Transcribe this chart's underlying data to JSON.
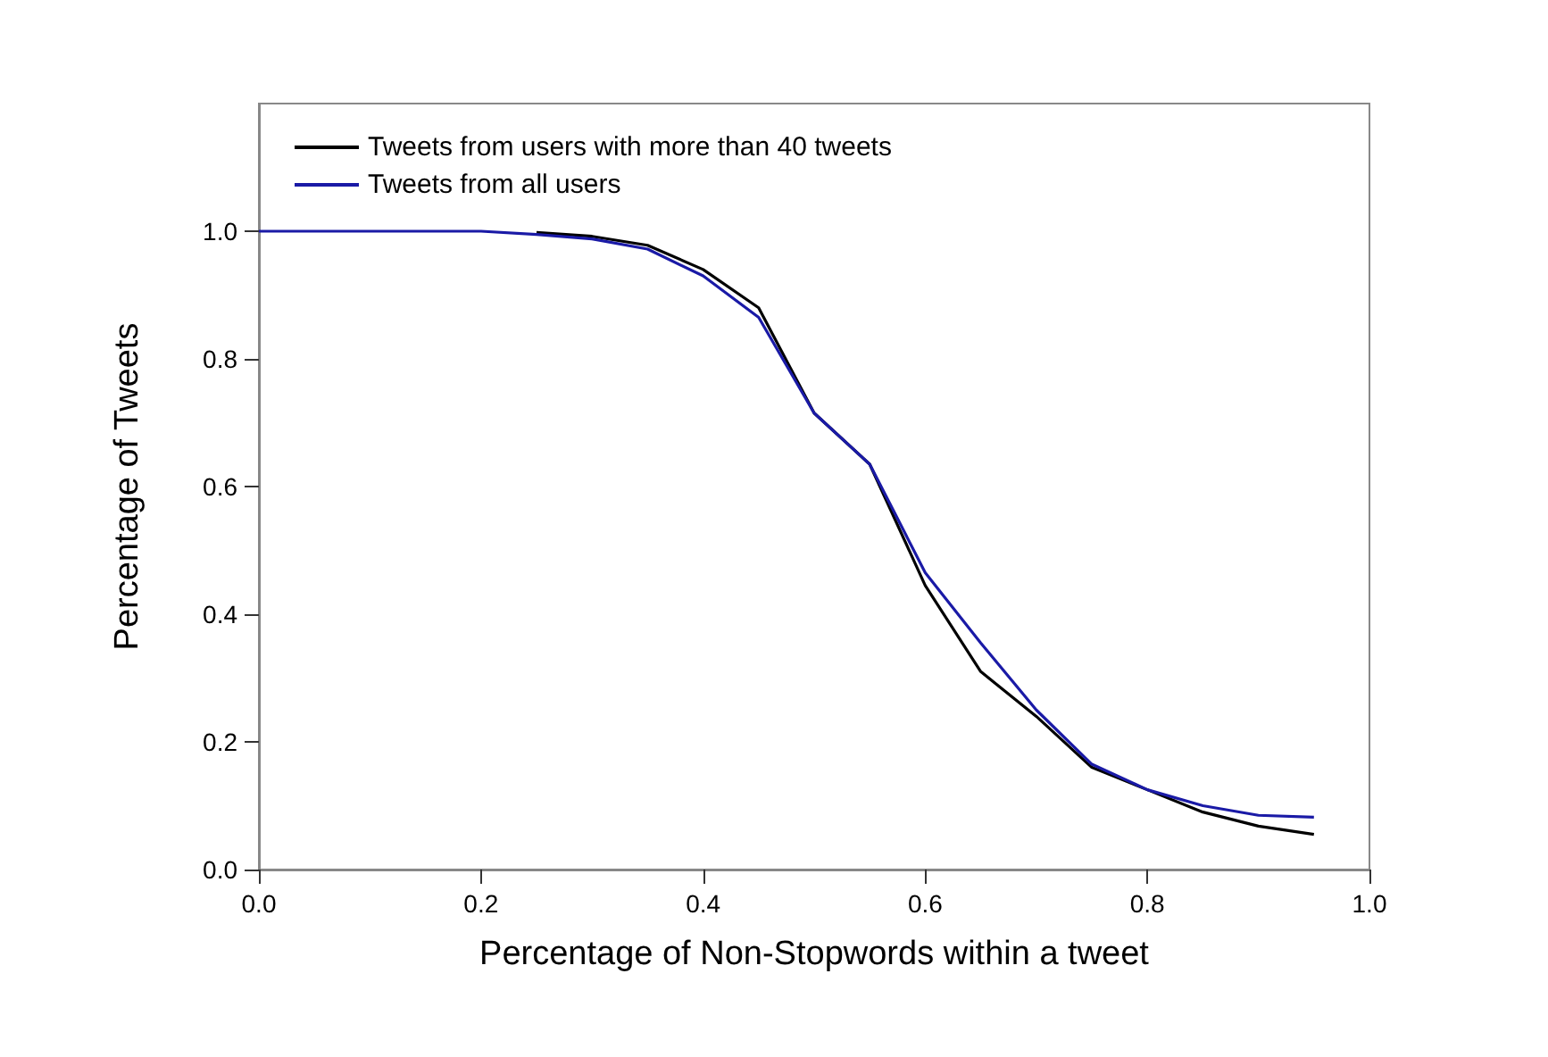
{
  "chart_data": {
    "type": "line",
    "xlabel": "Percentage of Non-Stopwords within a tweet",
    "ylabel": "Percentage of Tweets",
    "x": [
      0,
      0.05,
      0.1,
      0.15,
      0.2,
      0.25,
      0.3,
      0.35,
      0.4,
      0.45,
      0.5,
      0.55,
      0.6,
      0.65,
      0.7,
      0.75,
      0.8,
      0.85,
      0.9,
      0.95
    ],
    "series": [
      {
        "name": "Tweets from users with more than 40 tweets",
        "color": "#000000",
        "values": [
          null,
          null,
          null,
          null,
          null,
          0.998,
          0.992,
          0.978,
          0.94,
          0.88,
          0.715,
          0.635,
          0.445,
          0.31,
          0.24,
          0.16,
          0.125,
          0.09,
          0.068,
          0.055
        ]
      },
      {
        "name": "Tweets from all users",
        "color": "#1a1aa6",
        "values": [
          1.0,
          1.0,
          1.0,
          1.0,
          1.0,
          0.995,
          0.988,
          0.972,
          0.93,
          0.865,
          0.715,
          0.635,
          0.465,
          0.355,
          0.25,
          0.165,
          0.125,
          0.1,
          0.085,
          0.082
        ]
      }
    ],
    "xlim": [
      0,
      1.0
    ],
    "xticks": [
      {
        "value": 0,
        "label": "0.0"
      },
      0.2,
      0.4,
      0.6,
      0.8,
      {
        "value": 1,
        "label": "1.0"
      }
    ],
    "ylim": [
      0,
      1.2
    ],
    "yticks": [
      {
        "value": 0,
        "label": "0.0"
      },
      0.2,
      0.4,
      0.6,
      0.8,
      {
        "value": 1,
        "label": "1.0"
      }
    ],
    "grid": false,
    "legend": "top left",
    "marker": "none",
    "line_style": "solid"
  }
}
